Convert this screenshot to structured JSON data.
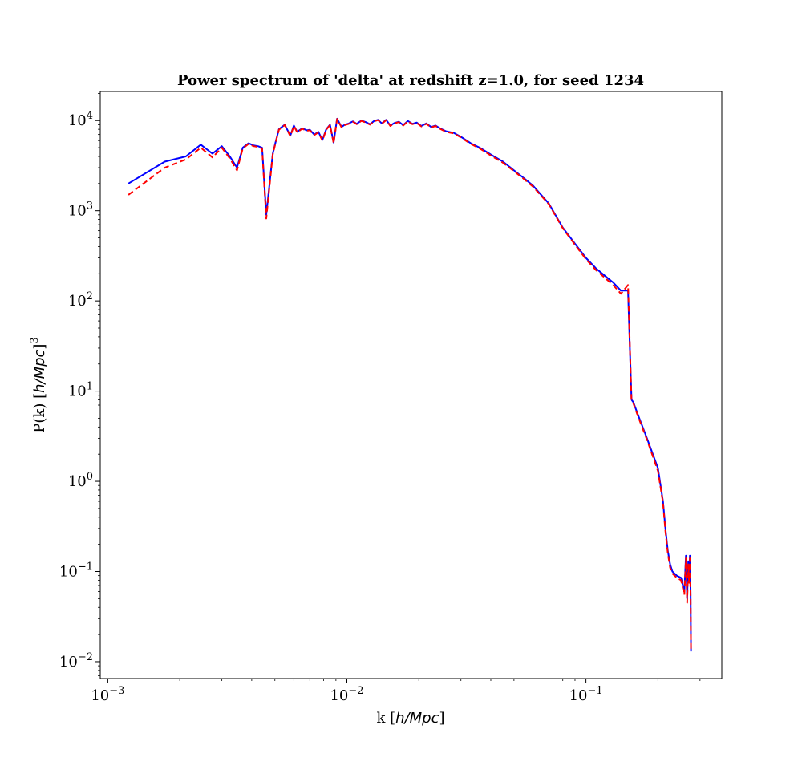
{
  "chart_data": {
    "type": "line",
    "title": "Power spectrum of 'delta' at redshift z=1.0, for seed 1234",
    "xlabel": "k [h/Mpc]",
    "ylabel": "P(k) [h/Mpc]³",
    "x_scale": "log",
    "y_scale": "log",
    "xlim": [
      0.00093,
      0.37
    ],
    "ylim": [
      0.0065,
      21000
    ],
    "x_ticks": [
      {
        "base": "10",
        "exp": "−3",
        "value": 0.001
      },
      {
        "base": "10",
        "exp": "−2",
        "value": 0.01
      },
      {
        "base": "10",
        "exp": "−1",
        "value": 0.1
      }
    ],
    "y_ticks": [
      {
        "base": "10",
        "exp": "−2",
        "value": 0.01
      },
      {
        "base": "10",
        "exp": "−1",
        "value": 0.1
      },
      {
        "base": "10",
        "exp": "0",
        "value": 1
      },
      {
        "base": "10",
        "exp": "1",
        "value": 10
      },
      {
        "base": "10",
        "exp": "2",
        "value": 100
      },
      {
        "base": "10",
        "exp": "3",
        "value": 1000
      },
      {
        "base": "10",
        "exp": "4",
        "value": 10000
      }
    ],
    "grid": false,
    "legend": false,
    "series": [
      {
        "color": "#0000ff",
        "style": "solid",
        "x": [
          0.00122,
          0.00173,
          0.00212,
          0.00245,
          0.00274,
          0.003,
          0.00324,
          0.00347,
          0.00367,
          0.00388,
          0.00407,
          0.00425,
          0.00442,
          0.0046,
          0.0049,
          0.00505,
          0.0052,
          0.0055,
          0.0058,
          0.006,
          0.0062,
          0.0065,
          0.0068,
          0.007,
          0.0073,
          0.0076,
          0.0079,
          0.0082,
          0.0085,
          0.0088,
          0.0091,
          0.0095,
          0.0098,
          0.0102,
          0.0106,
          0.011,
          0.0115,
          0.012,
          0.0125,
          0.013,
          0.0135,
          0.014,
          0.0146,
          0.0152,
          0.0158,
          0.0165,
          0.0172,
          0.018,
          0.0188,
          0.0196,
          0.0205,
          0.0215,
          0.0225,
          0.0235,
          0.0245,
          0.026,
          0.028,
          0.03,
          0.033,
          0.036,
          0.04,
          0.045,
          0.05,
          0.055,
          0.06,
          0.07,
          0.08,
          0.09,
          0.1,
          0.11,
          0.12,
          0.13,
          0.14,
          0.15,
          0.155,
          0.1553,
          0.158,
          0.165,
          0.18,
          0.2,
          0.21,
          0.215,
          0.22,
          0.225,
          0.23,
          0.24,
          0.25,
          0.258,
          0.262,
          0.265,
          0.268,
          0.27,
          0.272,
          0.274,
          0.275
        ],
        "y": [
          2000,
          3500,
          4000,
          5400,
          4300,
          5200,
          4000,
          3000,
          5000,
          5600,
          5300,
          5200,
          5000,
          900,
          4300,
          6000,
          8000,
          9000,
          6800,
          8800,
          7500,
          8200,
          7800,
          7900,
          7000,
          7500,
          6100,
          8000,
          9000,
          5700,
          10500,
          8500,
          9000,
          9300,
          9800,
          9200,
          10000,
          9600,
          9100,
          9900,
          10200,
          9300,
          10200,
          8800,
          9400,
          9700,
          8900,
          9900,
          9200,
          9500,
          8700,
          9300,
          8500,
          8800,
          8200,
          7600,
          7300,
          6600,
          5600,
          5000,
          4200,
          3500,
          2800,
          2300,
          1900,
          1200,
          650,
          430,
          300,
          230,
          190,
          160,
          130,
          130,
          8.2,
          8.0,
          7.5,
          5.5,
          3.0,
          1.4,
          0.6,
          0.3,
          0.17,
          0.12,
          0.1,
          0.09,
          0.085,
          0.06,
          0.15,
          0.05,
          0.13,
          0.08,
          0.15,
          0.06,
          0.013
        ]
      },
      {
        "color": "#ff0000",
        "style": "dashed",
        "x": [
          0.00122,
          0.00173,
          0.00212,
          0.00245,
          0.00274,
          0.003,
          0.00324,
          0.00347,
          0.00367,
          0.00388,
          0.00407,
          0.00425,
          0.00442,
          0.0046,
          0.0049,
          0.00505,
          0.0052,
          0.0055,
          0.0058,
          0.006,
          0.0062,
          0.0065,
          0.0068,
          0.007,
          0.0073,
          0.0076,
          0.0079,
          0.0082,
          0.0085,
          0.0088,
          0.0091,
          0.0095,
          0.0098,
          0.0102,
          0.0106,
          0.011,
          0.0115,
          0.012,
          0.0125,
          0.013,
          0.0135,
          0.014,
          0.0146,
          0.0152,
          0.0158,
          0.0165,
          0.0172,
          0.018,
          0.0188,
          0.0196,
          0.0205,
          0.0215,
          0.0225,
          0.0235,
          0.0245,
          0.026,
          0.028,
          0.03,
          0.033,
          0.036,
          0.04,
          0.045,
          0.05,
          0.055,
          0.06,
          0.07,
          0.08,
          0.09,
          0.1,
          0.11,
          0.12,
          0.13,
          0.14,
          0.15,
          0.155,
          0.1553,
          0.158,
          0.165,
          0.18,
          0.2,
          0.21,
          0.215,
          0.22,
          0.225,
          0.23,
          0.24,
          0.25,
          0.258,
          0.262,
          0.265,
          0.268,
          0.27,
          0.272,
          0.274,
          0.275
        ],
        "y": [
          1500,
          3000,
          3700,
          5000,
          3900,
          5000,
          3800,
          2800,
          4900,
          5500,
          5200,
          5100,
          4900,
          820,
          4200,
          5900,
          7900,
          8900,
          6700,
          8700,
          7400,
          8100,
          7700,
          7800,
          6900,
          7400,
          6000,
          7900,
          8900,
          5600,
          10400,
          8400,
          8900,
          9200,
          9700,
          9100,
          9900,
          9500,
          9000,
          9800,
          10100,
          9200,
          10100,
          8700,
          9300,
          9600,
          8800,
          9800,
          9100,
          9400,
          8600,
          9200,
          8400,
          8700,
          8100,
          7500,
          7200,
          6500,
          5500,
          4900,
          4100,
          3400,
          2750,
          2250,
          1850,
          1180,
          640,
          420,
          290,
          220,
          180,
          150,
          120,
          150,
          8.0,
          7.8,
          7.3,
          5.3,
          2.9,
          1.3,
          0.58,
          0.28,
          0.16,
          0.11,
          0.095,
          0.085,
          0.08,
          0.055,
          0.14,
          0.045,
          0.12,
          0.075,
          0.14,
          0.055,
          0.013
        ]
      }
    ]
  }
}
